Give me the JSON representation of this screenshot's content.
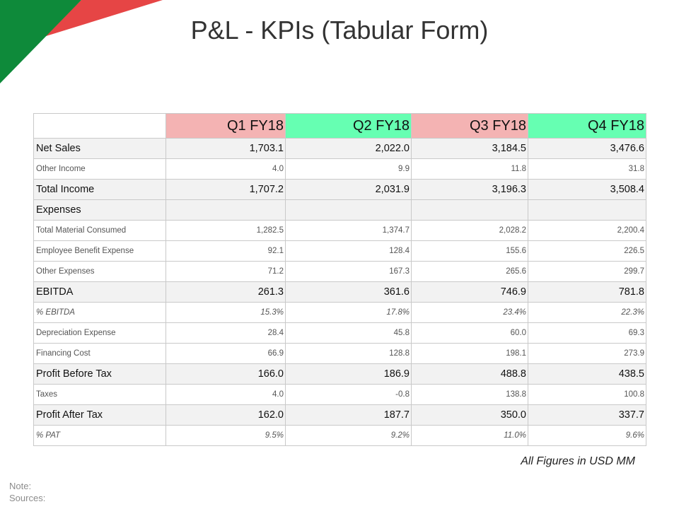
{
  "title": "P&L - KPIs (Tabular Form)",
  "colors": {
    "q1_header": "#f4b3b3",
    "q2_header": "#66ffb2",
    "q3_header": "#f4b3b3",
    "q4_header": "#66ffb2",
    "corner_green": "#0e8a3a",
    "corner_red": "#e64545"
  },
  "table": {
    "columns": [
      "",
      "Q1 FY18",
      "Q2 FY18",
      "Q3 FY18",
      "Q4 FY18"
    ],
    "rows": [
      {
        "label": "Net  Sales",
        "values": [
          "1,703.1",
          "2,022.0",
          "3,184.5",
          "3,476.6"
        ]
      },
      {
        "label": "Other Income",
        "values": [
          "4.0",
          "9.9",
          "11.8",
          "31.8"
        ]
      },
      {
        "label": "Total  Income",
        "values": [
          "1,707.2",
          "2,031.9",
          "3,196.3",
          "3,508.4"
        ]
      },
      {
        "label": "Expenses",
        "values": [
          "",
          "",
          "",
          ""
        ]
      },
      {
        "label": "Total Material Consumed",
        "values": [
          "1,282.5",
          "1,374.7",
          "2,028.2",
          "2,200.4"
        ]
      },
      {
        "label": "Employee Benefit Expense",
        "values": [
          "92.1",
          "128.4",
          "155.6",
          "226.5"
        ]
      },
      {
        "label": "Other Expenses",
        "values": [
          "71.2",
          "167.3",
          "265.6",
          "299.7"
        ]
      },
      {
        "label": "EBITDA",
        "values": [
          "261.3",
          "361.6",
          "746.9",
          "781.8"
        ]
      },
      {
        "label": "% EBITDA",
        "values": [
          "15.3%",
          "17.8%",
          "23.4%",
          "22.3%"
        ]
      },
      {
        "label": "Depreciation Expense",
        "values": [
          "28.4",
          "45.8",
          "60.0",
          "69.3"
        ]
      },
      {
        "label": "Financing Cost",
        "values": [
          "66.9",
          "128.8",
          "198.1",
          "273.9"
        ]
      },
      {
        "label": "Profit Before Tax",
        "values": [
          "166.0",
          "186.9",
          "488.8",
          "438.5"
        ]
      },
      {
        "label": "Taxes",
        "values": [
          "4.0",
          "-0.8",
          "138.8",
          "100.8"
        ]
      },
      {
        "label": "Profit After Tax",
        "values": [
          "162.0",
          "187.7",
          "350.0",
          "337.7"
        ]
      },
      {
        "label": "% PAT",
        "values": [
          "9.5%",
          "9.2%",
          "11.0%",
          "9.6%"
        ]
      }
    ]
  },
  "footnote": "All Figures in USD MM",
  "note_label": "Note:",
  "sources_label": "Sources:"
}
